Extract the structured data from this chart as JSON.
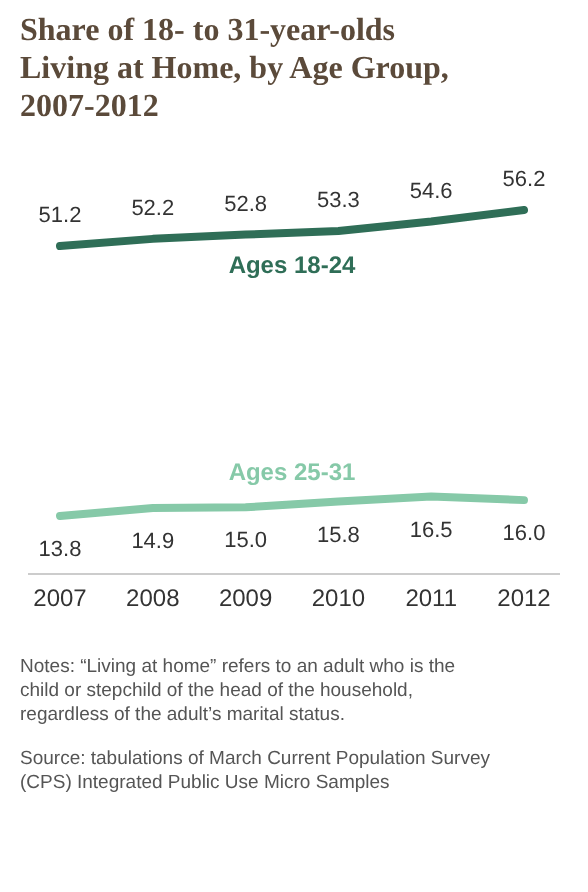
{
  "chart_data": {
    "type": "line",
    "title": "Share of 18- to 31-year-olds Living at Home, by Age Group, 2007-2012",
    "categories": [
      "2007",
      "2008",
      "2009",
      "2010",
      "2011",
      "2012"
    ],
    "series": [
      {
        "name": "Ages 18-24",
        "color": "#2f6e57",
        "values": [
          51.2,
          52.2,
          52.8,
          53.3,
          54.6,
          56.2
        ],
        "value_labels": [
          "51.2",
          "52.2",
          "52.8",
          "53.3",
          "54.6",
          "56.2"
        ]
      },
      {
        "name": "Ages 25-31",
        "color": "#86c9a8",
        "values": [
          13.8,
          14.9,
          15.0,
          15.8,
          16.5,
          16.0
        ],
        "value_labels": [
          "13.8",
          "14.9",
          "15.0",
          "15.8",
          "16.5",
          "16.0"
        ]
      }
    ],
    "grid": false,
    "marker": "none",
    "line_style": "solid",
    "annotations": [
      "Notes: “Living at home” refers to an adult who is the child or stepchild of the head of the household, regardless of the adult’s marital status.",
      "Source: tabulations of March Current Population Survey (CPS) Integrated Public Use Micro Samples"
    ]
  }
}
